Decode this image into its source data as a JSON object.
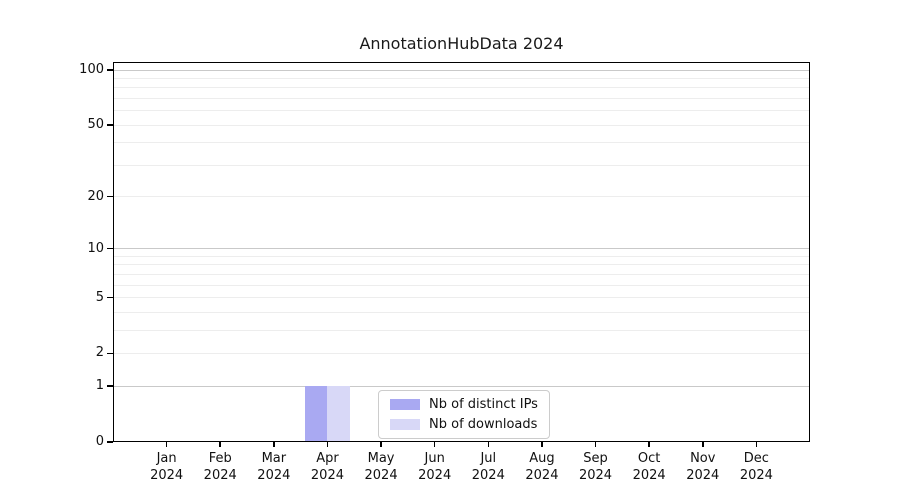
{
  "chart_data": {
    "type": "bar",
    "title": "AnnotationHubData 2024",
    "categories": [
      "Jan 2024",
      "Feb 2024",
      "Mar 2024",
      "Apr 2024",
      "May 2024",
      "Jun 2024",
      "Jul 2024",
      "Aug 2024",
      "Sep 2024",
      "Oct 2024",
      "Nov 2024",
      "Dec 2024"
    ],
    "series": [
      {
        "name": "Nb of distinct IPs",
        "color": "#a9a9f2",
        "values": [
          0,
          0,
          0,
          1,
          0,
          0,
          0,
          0,
          0,
          0,
          0,
          0
        ]
      },
      {
        "name": "Nb of downloads",
        "color": "#d8d8f7",
        "values": [
          0,
          0,
          0,
          1,
          0,
          0,
          0,
          0,
          0,
          0,
          0,
          0
        ]
      }
    ],
    "yscale": "log1p",
    "ylim": [
      0,
      100
    ],
    "yticks": [
      0,
      1,
      2,
      5,
      10,
      20,
      50,
      100
    ],
    "gridlines": {
      "major": [
        1,
        10,
        100
      ],
      "minor": [
        2,
        3,
        4,
        5,
        6,
        7,
        8,
        9,
        20,
        30,
        40,
        50,
        60,
        70,
        80,
        90
      ]
    },
    "legend_position": "bottom-center",
    "axis_color": "#000000",
    "major_grid_color": "#c9c9c9",
    "minor_grid_color": "#ededed"
  }
}
